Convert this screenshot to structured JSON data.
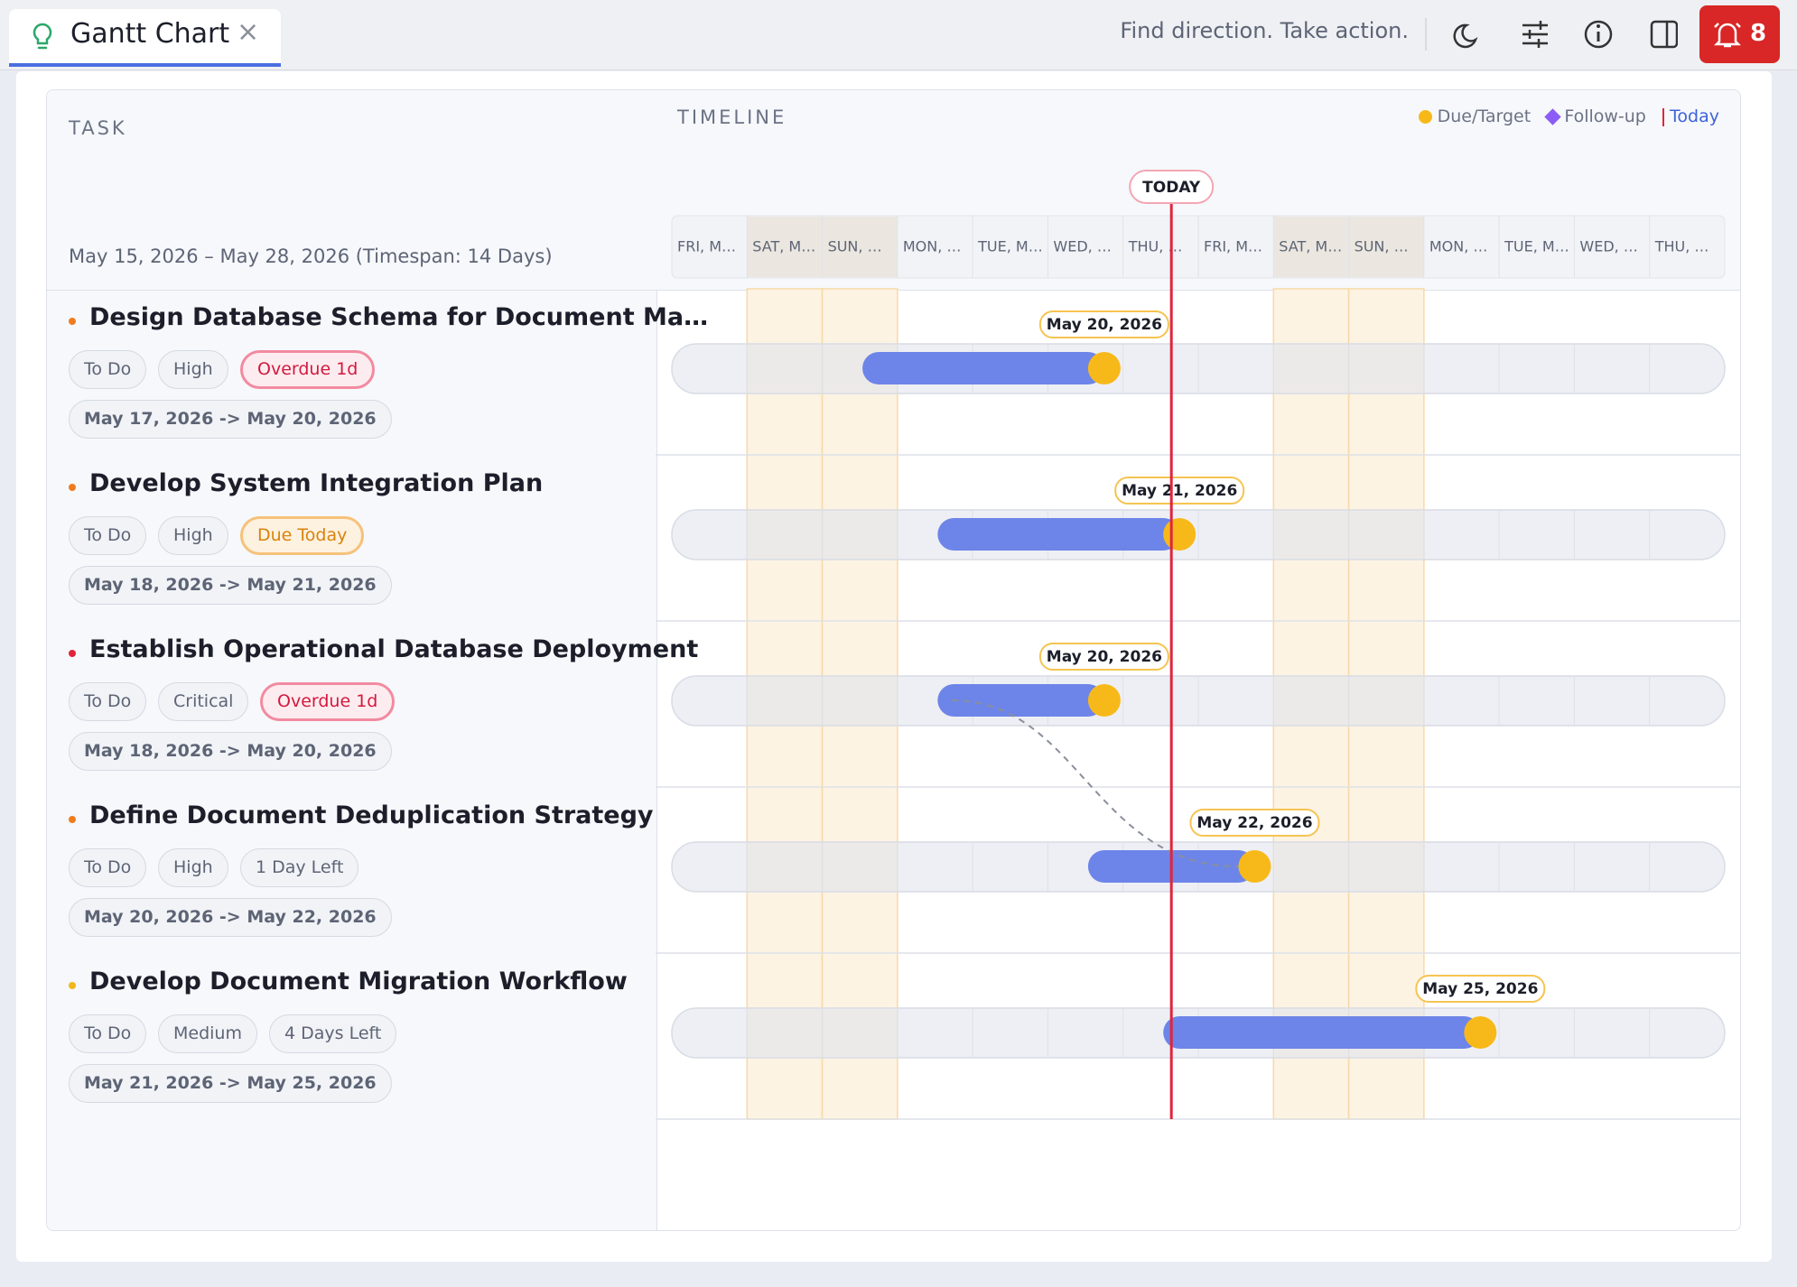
{
  "tab": {
    "title": "Gantt Chart"
  },
  "topbar": {
    "tagline": "Find direction. Take action.",
    "notifications": 8
  },
  "headers": {
    "task": "TASK",
    "timeline": "TIMELINE"
  },
  "legend": {
    "due": "Due/Target",
    "followup": "Follow-up",
    "today": "Today"
  },
  "range": "May 15, 2026 – May 28, 2026 (Timespan: 14 Days)",
  "today_label": "TODAY",
  "days": [
    "FRI, M…",
    "SAT, M…",
    "SUN, …",
    "MON, …",
    "TUE, M…",
    "WED, …",
    "THU, …",
    "FRI, M…",
    "SAT, M…",
    "SUN, …",
    "MON, …",
    "TUE, M…",
    "WED, …",
    "THU, …"
  ],
  "tasks": [
    {
      "title": "Design Database Schema for Document Ma…",
      "bullet_color": "#f07c1e",
      "status": "To Do",
      "priority": "High",
      "badge": "Overdue 1d",
      "badge_kind": "overdue",
      "dates": "May 17, 2026 -> May 20, 2026",
      "due_label": "May 20, 2026"
    },
    {
      "title": "Develop System Integration Plan",
      "bullet_color": "#f07c1e",
      "status": "To Do",
      "priority": "High",
      "badge": "Due Today",
      "badge_kind": "due_today",
      "dates": "May 18, 2026 -> May 21, 2026",
      "due_label": "May 21, 2026"
    },
    {
      "title": "Establish Operational Database Deployment",
      "bullet_color": "#e0243c",
      "status": "To Do",
      "priority": "Critical",
      "badge": "Overdue 1d",
      "badge_kind": "overdue",
      "dates": "May 18, 2026 -> May 20, 2026",
      "due_label": "May 20, 2026"
    },
    {
      "title": "Define Document Deduplication Strategy",
      "bullet_color": "#f07c1e",
      "status": "To Do",
      "priority": "High",
      "badge": "1 Day Left",
      "badge_kind": "neutral",
      "dates": "May 20, 2026 -> May 22, 2026",
      "due_label": "May 22, 2026"
    },
    {
      "title": "Develop Document Migration Workflow",
      "bullet_color": "#f2b71c",
      "status": "To Do",
      "priority": "Medium",
      "badge": "4 Days Left",
      "badge_kind": "neutral",
      "dates": "May 21, 2026 -> May 25, 2026",
      "due_label": "May 25, 2026"
    }
  ]
}
